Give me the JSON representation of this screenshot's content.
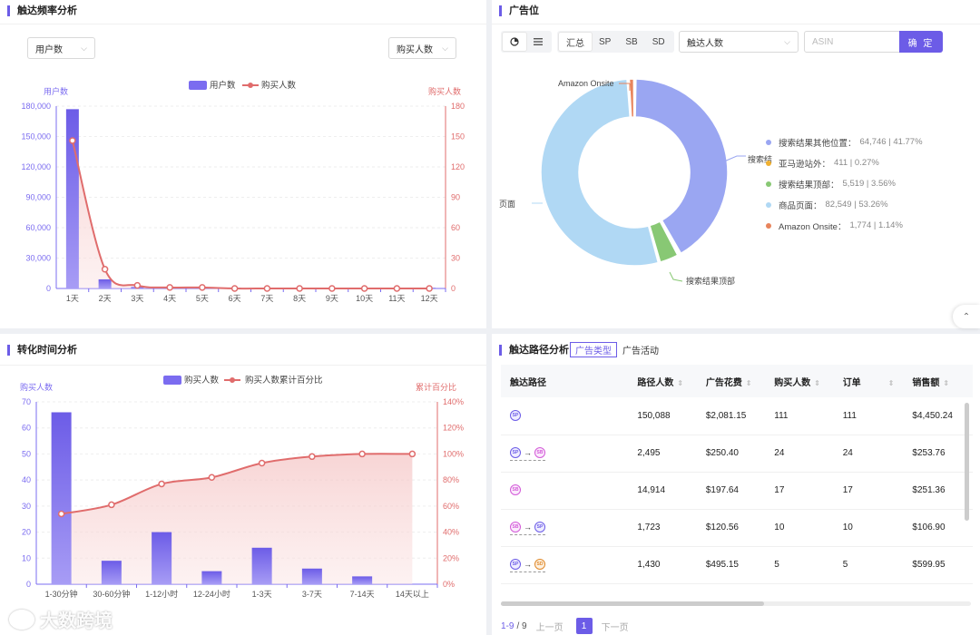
{
  "panel1": {
    "title": "触达频率分析",
    "left_select": "用户数",
    "right_select": "购买人数",
    "legend_bar": "用户数",
    "legend_line": "购买人数",
    "chart_data": {
      "type": "bar",
      "categories": [
        "1天",
        "2天",
        "3天",
        "4天",
        "5天",
        "6天",
        "7天",
        "8天",
        "9天",
        "10天",
        "11天",
        "12天"
      ],
      "series": [
        {
          "name": "用户数",
          "type": "bar",
          "axis": "left",
          "values": [
            177000,
            9000,
            1500,
            500,
            300,
            200,
            150,
            100,
            80,
            60,
            50,
            40
          ]
        },
        {
          "name": "购买人数",
          "type": "line",
          "axis": "right",
          "values": [
            146,
            19,
            3,
            1,
            1,
            0,
            0,
            0,
            0,
            0,
            0,
            0
          ]
        }
      ],
      "ylabel": "用户数",
      "ylabel_right": "购买人数",
      "ylim": [
        0,
        180000
      ],
      "ylim_right": [
        0,
        180
      ],
      "yticks": [
        "0",
        "30,000",
        "60,000",
        "90,000",
        "120,000",
        "150,000",
        "180,000"
      ],
      "yticks_right": [
        "0",
        "30",
        "60",
        "90",
        "120",
        "150",
        "180"
      ],
      "colors": {
        "bar": "#7b6cf0",
        "line": "#e06c6c"
      }
    }
  },
  "panel2": {
    "title": "广告位",
    "view_icons": [
      "pie-icon",
      "list-icon"
    ],
    "type_buttons": [
      "汇总",
      "SP",
      "SB",
      "SD"
    ],
    "metric_select": "触达人数",
    "asin_placeholder": "ASIN",
    "ok_button": "确 定",
    "chart_data": {
      "type": "pie",
      "slices": [
        {
          "name": "搜索结果其他位置",
          "value": 64746,
          "percent": "41.77%",
          "color": "#9aa6f2"
        },
        {
          "name": "亚马逊站外",
          "value": 411,
          "percent": "0.27%",
          "color": "#f0b030"
        },
        {
          "name": "搜索结果顶部",
          "value": 5519,
          "percent": "3.56%",
          "color": "#88c874"
        },
        {
          "name": "商品页面",
          "value": 82549,
          "percent": "53.26%",
          "color": "#b0d8f4"
        },
        {
          "name": "Amazon Onsite",
          "value": 1774,
          "percent": "1.14%",
          "color": "#e8845c"
        }
      ],
      "callouts": {
        "amazon": "Amazon Onsite",
        "top": "搜索结果顶部",
        "left": "页面",
        "right": "搜索结"
      }
    },
    "legend": [
      {
        "label": "搜索结果其他位置：",
        "value": "64,746 | 41.77%",
        "color": "#9aa6f2"
      },
      {
        "label": "亚马逊站外：",
        "value": "411 | 0.27%",
        "color": "#f0b030"
      },
      {
        "label": "搜索结果顶部：",
        "value": "5,519 | 3.56%",
        "color": "#88c874"
      },
      {
        "label": "商品页面：",
        "value": "82,549 | 53.26%",
        "color": "#b0d8f4"
      },
      {
        "label": "Amazon Onsite：",
        "value": "1,774 | 1.14%",
        "color": "#e8845c"
      }
    ]
  },
  "panel3": {
    "title": "转化时间分析",
    "legend_bar": "购买人数",
    "legend_line": "购买人数累计百分比",
    "chart_data": {
      "type": "bar",
      "categories": [
        "1-30分钟",
        "30-60分钟",
        "1-12小时",
        "12-24小时",
        "1-3天",
        "3-7天",
        "7-14天",
        "14天以上"
      ],
      "series": [
        {
          "name": "购买人数",
          "type": "bar",
          "axis": "left",
          "values": [
            66,
            9,
            20,
            5,
            14,
            6,
            3,
            0
          ]
        },
        {
          "name": "购买人数累计百分比",
          "type": "line",
          "axis": "right",
          "values": [
            54,
            61,
            77,
            82,
            93,
            98,
            100,
            100
          ]
        }
      ],
      "ylabel": "购买人数",
      "ylabel_right": "累计百分比",
      "ylim": [
        0,
        70
      ],
      "ylim_right": [
        0,
        140
      ],
      "yticks": [
        "0",
        "10",
        "20",
        "30",
        "40",
        "50",
        "60",
        "70"
      ],
      "yticks_right": [
        "0%",
        "20%",
        "40%",
        "60%",
        "80%",
        "100%",
        "120%",
        "140%"
      ],
      "colors": {
        "bar": "#7b6cf0",
        "line": "#e06c6c"
      }
    }
  },
  "panel4": {
    "title": "触达路径分析",
    "tabs": [
      "广告类型",
      "广告活动"
    ],
    "columns": [
      "触达路径",
      "路径人数",
      "广告花费",
      "购买人数",
      "订单",
      "销售额"
    ],
    "rows": [
      {
        "path": [
          "SP"
        ],
        "users": "150,088",
        "spend": "$2,081.15",
        "buyers": "111",
        "orders": "111",
        "sales": "$4,450.24"
      },
      {
        "path": [
          "SP",
          "SB"
        ],
        "users": "2,495",
        "spend": "$250.40",
        "buyers": "24",
        "orders": "24",
        "sales": "$253.76"
      },
      {
        "path": [
          "SB"
        ],
        "users": "14,914",
        "spend": "$197.64",
        "buyers": "17",
        "orders": "17",
        "sales": "$251.36"
      },
      {
        "path": [
          "SB",
          "SP"
        ],
        "users": "1,723",
        "spend": "$120.56",
        "buyers": "10",
        "orders": "10",
        "sales": "$106.90"
      },
      {
        "path": [
          "SP",
          "SD"
        ],
        "users": "1,430",
        "spend": "$495.15",
        "buyers": "5",
        "orders": "5",
        "sales": "$599.95"
      }
    ],
    "pager": {
      "range": "1-9",
      "total": "/ 9",
      "prev": "上一页",
      "page": "1",
      "next": "下一页"
    }
  },
  "watermark": "大数跨境"
}
